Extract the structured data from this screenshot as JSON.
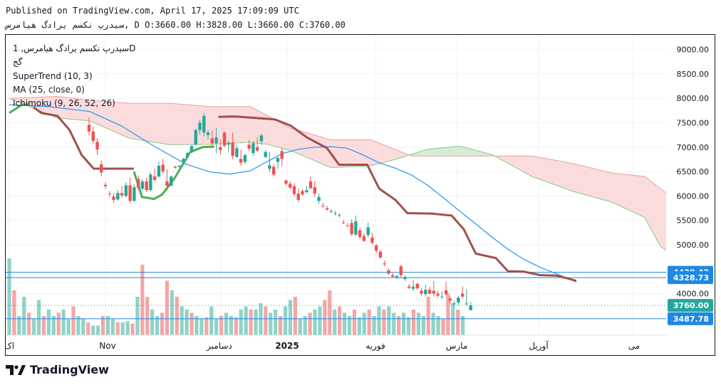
{
  "header": {
    "published": "Published on TradingView.com, April 17, 2025 17:09:09 UTC",
    "symbol_ohlc": "سیدرپ نکسم یرادگ هیامرس, D O:3660.00 H:3828.00 L:3660.00 C:3760.00"
  },
  "legend": {
    "symbol_line": "سیدرپ نکسم یرادگ هیامرس, 1D",
    "symbol_sub": "گج",
    "supertrend": "SuperTrend (10, 3)",
    "ma": "MA (25, close, 0)",
    "ichimoku": "Ichimoku (9, 26, 52, 26)"
  },
  "footer": {
    "brand": "TradingView"
  },
  "colors": {
    "up": "#26a69a",
    "down": "#ef5350",
    "vol_up": "#8fd3c9",
    "vol_down": "#f5a6a6",
    "ma": "#2196f3",
    "st_up": "#4caf50",
    "st_down": "#a1504c",
    "cloud_bull": "#d7ecd7",
    "cloud_bear": "#fbdcdc",
    "span_bull": "#8bc78d",
    "span_bear": "#e9a3a3",
    "hline": "#1e88e5"
  },
  "chart_data": {
    "type": "candlestick",
    "x_labels": [
      "اک",
      "Nov",
      "دسامبر",
      "2025",
      "فوریه",
      "مارس",
      "آوریل",
      "می"
    ],
    "y_ticks": [
      "9000.00",
      "8500.00",
      "8000.00",
      "7500.00",
      "7000.00",
      "6500.00",
      "6000.00",
      "5500.00",
      "5000.00",
      "4000.00"
    ],
    "ylim": [
      3150,
      9300
    ],
    "price_markers": [
      {
        "label": "4438.42",
        "value": 4438.42
      },
      {
        "label": "4328.73",
        "value": 4328.73
      },
      {
        "label": "3760.00",
        "value": 3760.0
      },
      {
        "label": "3487.78",
        "value": 3487.78
      }
    ],
    "last_close": 3760,
    "candles": [
      [
        7460,
        7610,
        7240,
        7320
      ],
      [
        7320,
        7420,
        7070,
        7130
      ],
      [
        7110,
        7180,
        6840,
        6950
      ],
      [
        6650,
        6720,
        6400,
        6480
      ],
      [
        6230,
        6280,
        6150,
        6200
      ],
      [
        6050,
        6100,
        5980,
        6040
      ],
      [
        5990,
        6060,
        5860,
        5920
      ],
      [
        5930,
        6120,
        5900,
        6060
      ],
      [
        6060,
        6200,
        5960,
        6010
      ],
      [
        6000,
        6280,
        5980,
        6220
      ],
      [
        6220,
        6380,
        5850,
        5900
      ],
      [
        5900,
        6240,
        5880,
        6180
      ],
      [
        6350,
        6420,
        6120,
        6170
      ],
      [
        6150,
        6340,
        6100,
        6300
      ],
      [
        6300,
        6380,
        6080,
        6120
      ],
      [
        6120,
        6480,
        6100,
        6440
      ],
      [
        6400,
        6560,
        6290,
        6330
      ],
      [
        6400,
        6700,
        6380,
        6620
      ],
      [
        6640,
        6760,
        6460,
        6500
      ],
      [
        6300,
        6550,
        6110,
        6210
      ],
      [
        6210,
        6420,
        6200,
        6400
      ],
      [
        6600,
        6620,
        6560,
        6580
      ],
      [
        6600,
        6640,
        6580,
        6620
      ],
      [
        6700,
        6780,
        6680,
        6760
      ],
      [
        6800,
        6900,
        6790,
        6880
      ],
      [
        6900,
        7050,
        6880,
        7020
      ],
      [
        7050,
        7380,
        7040,
        7350
      ],
      [
        7350,
        7560,
        7250,
        7500
      ],
      [
        7300,
        7700,
        7220,
        7640
      ],
      [
        7250,
        7350,
        7160,
        7300
      ],
      [
        7180,
        7340,
        7000,
        7080
      ],
      [
        7080,
        7400,
        6880,
        7200
      ],
      [
        7000,
        7160,
        6850,
        6940
      ],
      [
        7300,
        7320,
        7000,
        7030
      ],
      [
        7050,
        7130,
        6900,
        7090
      ],
      [
        7100,
        7300,
        6750,
        6820
      ],
      [
        6800,
        7050,
        6780,
        6980
      ],
      [
        6760,
        6950,
        6620,
        6680
      ],
      [
        6700,
        6850,
        6650,
        6840
      ],
      [
        7050,
        7150,
        6920,
        6970
      ],
      [
        6880,
        7130,
        6820,
        7080
      ],
      [
        7000,
        7200,
        6900,
        6930
      ],
      [
        7120,
        7280,
        7040,
        7240
      ],
      [
        6800,
        6940,
        6780,
        6900
      ],
      [
        6560,
        6900,
        6490,
        6630
      ],
      [
        6600,
        6650,
        6400,
        6440
      ],
      [
        6700,
        6800,
        6560,
        6780
      ],
      [
        6920,
        6980,
        6600,
        6760
      ],
      [
        6320,
        6340,
        6220,
        6250
      ],
      [
        6250,
        6300,
        6140,
        6170
      ],
      [
        6200,
        6260,
        5990,
        6040
      ],
      [
        6050,
        6150,
        5880,
        5920
      ],
      [
        6100,
        6140,
        6010,
        6030
      ],
      [
        6080,
        6200,
        6050,
        6120
      ],
      [
        6300,
        6400,
        6140,
        6160
      ],
      [
        6180,
        6300,
        5980,
        6050
      ],
      [
        5900,
        6050,
        5840,
        5980
      ],
      [
        5800,
        5860,
        5760,
        5790
      ],
      [
        5750,
        5800,
        5700,
        5720
      ],
      [
        5680,
        5730,
        5650,
        5690
      ],
      [
        5640,
        5690,
        5600,
        5650
      ],
      [
        5600,
        5650,
        5560,
        5610
      ],
      [
        5460,
        5510,
        5420,
        5450
      ],
      [
        5400,
        5450,
        5360,
        5390
      ],
      [
        5450,
        5520,
        5180,
        5220
      ],
      [
        5210,
        5600,
        5180,
        5480
      ],
      [
        5300,
        5360,
        5120,
        5160
      ],
      [
        5180,
        5240,
        5060,
        5080
      ],
      [
        5200,
        5460,
        5150,
        5360
      ],
      [
        5150,
        5250,
        5010,
        5040
      ],
      [
        4990,
        5020,
        4830,
        4880
      ],
      [
        4860,
        4900,
        4710,
        4740
      ],
      [
        4620,
        4680,
        4560,
        4600
      ],
      [
        4480,
        4520,
        4380,
        4410
      ],
      [
        4380,
        4420,
        4320,
        4350
      ],
      [
        4330,
        4380,
        4300,
        4360
      ],
      [
        4560,
        4590,
        4320,
        4380
      ],
      [
        4300,
        4380,
        4260,
        4340
      ],
      [
        4150,
        4200,
        4090,
        4120
      ],
      [
        4100,
        4290,
        4050,
        4140
      ],
      [
        4200,
        4230,
        4080,
        4110
      ],
      [
        4060,
        4110,
        3960,
        4000
      ],
      [
        3990,
        4180,
        3940,
        4080
      ],
      [
        4080,
        4140,
        3990,
        4000
      ],
      [
        4060,
        4260,
        3940,
        4000
      ],
      [
        4000,
        4060,
        3930,
        3960
      ],
      [
        3940,
        4050,
        3900,
        3940
      ],
      [
        4070,
        4250,
        3960,
        3990
      ],
      [
        3900,
        3940,
        3800,
        3860
      ],
      [
        3800,
        3860,
        3760,
        3800
      ],
      [
        3820,
        3960,
        3760,
        3920
      ],
      [
        4000,
        4150,
        3900,
        3940
      ],
      [
        3800,
        4090,
        3760,
        3800
      ],
      [
        3660,
        3828,
        3660,
        3760
      ]
    ],
    "volume": [
      [
        1,
        0
      ],
      [
        1,
        0
      ],
      [
        0,
        0
      ],
      [
        1,
        0
      ],
      [
        0,
        0
      ],
      [
        0,
        0
      ],
      [
        1,
        0
      ],
      [
        1,
        0
      ],
      [
        1,
        0
      ],
      [
        1,
        0
      ],
      [
        1,
        0
      ],
      [
        1,
        0
      ],
      [
        1,
        0
      ],
      [
        1,
        0
      ],
      [
        1,
        0
      ],
      [
        0,
        0
      ],
      [
        0,
        0
      ],
      [
        0,
        0
      ],
      [
        0,
        0
      ],
      [
        1,
        0
      ],
      [
        1,
        0
      ],
      [
        0,
        0
      ],
      [
        0,
        0
      ],
      [
        0,
        0
      ],
      [
        0,
        0
      ],
      [
        0,
        0
      ],
      [
        1,
        0
      ],
      [
        1,
        1
      ],
      [
        1,
        1
      ],
      [
        1,
        0
      ],
      [
        1,
        0
      ],
      [
        1,
        0
      ],
      [
        1,
        1
      ],
      [
        1,
        0
      ],
      [
        1,
        0
      ],
      [
        1,
        0
      ],
      [
        1,
        0
      ],
      [
        1,
        0
      ],
      [
        1,
        0
      ],
      [
        1,
        0
      ],
      [
        1,
        0
      ],
      [
        1,
        0
      ],
      [
        1,
        0
      ],
      [
        1,
        0
      ],
      [
        1,
        0
      ],
      [
        1,
        0
      ],
      [
        1,
        0
      ],
      [
        1,
        0
      ],
      [
        1,
        0
      ],
      [
        1,
        0
      ],
      [
        1,
        0
      ],
      [
        1,
        0
      ],
      [
        1,
        0
      ],
      [
        1,
        0
      ],
      [
        1,
        0
      ],
      [
        1,
        0
      ],
      [
        1,
        0
      ],
      [
        1,
        0
      ],
      [
        1,
        0
      ],
      [
        1,
        0
      ],
      [
        1,
        0
      ],
      [
        1,
        0
      ],
      [
        1,
        0
      ],
      [
        1,
        0
      ],
      [
        1,
        0
      ],
      [
        1,
        1
      ],
      [
        1,
        0
      ],
      [
        1,
        0
      ],
      [
        1,
        0
      ],
      [
        1,
        0
      ],
      [
        1,
        0
      ],
      [
        1,
        0
      ],
      [
        1,
        0
      ],
      [
        1,
        0
      ],
      [
        1,
        0
      ],
      [
        1,
        0
      ],
      [
        1,
        0
      ],
      [
        1,
        0
      ],
      [
        1,
        0
      ],
      [
        1,
        0
      ],
      [
        1,
        0
      ],
      [
        1,
        0
      ],
      [
        1,
        0
      ],
      [
        1,
        0
      ],
      [
        1,
        0
      ],
      [
        1,
        0
      ],
      [
        1,
        0
      ],
      [
        1,
        0
      ],
      [
        1,
        0
      ],
      [
        1,
        1
      ],
      [
        1,
        0
      ],
      [
        1,
        0
      ],
      [
        1,
        0
      ]
    ],
    "supertrend": [
      [
        0,
        7700,
        "up"
      ],
      [
        3,
        7860,
        "up"
      ],
      [
        5,
        7880,
        "up"
      ],
      [
        6,
        7820,
        "down"
      ],
      [
        8,
        7700,
        "down"
      ],
      [
        12,
        7640,
        "down"
      ],
      [
        15,
        7350,
        "down"
      ],
      [
        18,
        6840,
        "down"
      ],
      [
        21,
        6560,
        "down"
      ],
      [
        29,
        6560,
        "down"
      ],
      [
        31,
        6560,
        "down"
      ],
      [
        31,
        6500,
        "up"
      ],
      [
        33,
        5980,
        "up"
      ],
      [
        36,
        5940,
        "up"
      ],
      [
        38,
        6030,
        "up"
      ],
      [
        41,
        6350,
        "up"
      ],
      [
        45,
        6900,
        "up"
      ],
      [
        48,
        7000,
        "up"
      ],
      [
        51,
        7010,
        "up"
      ],
      [
        52,
        7620,
        "down"
      ],
      [
        56,
        7630,
        "down"
      ],
      [
        66,
        7570,
        "down"
      ],
      [
        70,
        7440,
        "down"
      ],
      [
        74,
        7200,
        "down"
      ],
      [
        79,
        6980,
        "down"
      ],
      [
        82,
        6640,
        "down"
      ],
      [
        86,
        6640,
        "down"
      ],
      [
        89,
        6640,
        "down"
      ],
      [
        92,
        6150,
        "down"
      ],
      [
        96,
        5920,
        "down"
      ],
      [
        99,
        5650,
        "down"
      ],
      [
        105,
        5640,
        "down"
      ],
      [
        110,
        5600,
        "down"
      ],
      [
        113,
        5320,
        "down"
      ],
      [
        116,
        4820,
        "down"
      ],
      [
        121,
        4730,
        "down"
      ],
      [
        124,
        4460,
        "down"
      ],
      [
        128,
        4450,
        "down"
      ],
      [
        132,
        4380,
        "down"
      ],
      [
        136,
        4370,
        "down"
      ],
      [
        139,
        4310,
        "down"
      ],
      [
        141,
        4260,
        "down"
      ]
    ],
    "ma": [
      [
        0,
        7870
      ],
      [
        10,
        7830
      ],
      [
        20,
        7730
      ],
      [
        28,
        7430
      ],
      [
        36,
        7020
      ],
      [
        44,
        6650
      ],
      [
        50,
        6490
      ],
      [
        55,
        6450
      ],
      [
        60,
        6520
      ],
      [
        64,
        6700
      ],
      [
        68,
        6870
      ],
      [
        72,
        6960
      ],
      [
        76,
        7000
      ],
      [
        80,
        7010
      ],
      [
        84,
        6980
      ],
      [
        88,
        6840
      ],
      [
        92,
        6680
      ],
      [
        96,
        6570
      ],
      [
        100,
        6430
      ],
      [
        104,
        6220
      ],
      [
        108,
        5960
      ],
      [
        112,
        5690
      ],
      [
        116,
        5430
      ],
      [
        120,
        5160
      ],
      [
        124,
        4910
      ],
      [
        128,
        4700
      ],
      [
        132,
        4540
      ],
      [
        136,
        4410
      ],
      [
        141,
        4240
      ]
    ],
    "span_a": [
      [
        0,
        8000
      ],
      [
        12,
        7600
      ],
      [
        20,
        7540
      ],
      [
        30,
        7180
      ],
      [
        40,
        7050
      ],
      [
        50,
        7060
      ],
      [
        60,
        7100
      ],
      [
        64,
        7060
      ],
      [
        70,
        6930
      ],
      [
        80,
        6580
      ],
      [
        90,
        6620
      ],
      [
        96,
        6750
      ],
      [
        104,
        6960
      ],
      [
        112,
        7020
      ],
      [
        120,
        6850
      ],
      [
        130,
        6400
      ],
      [
        140,
        6100
      ],
      [
        150,
        5870
      ],
      [
        158,
        5560
      ],
      [
        162,
        4960
      ],
      [
        170,
        4540
      ]
    ],
    "span_b": [
      [
        0,
        8000
      ],
      [
        12,
        8040
      ],
      [
        20,
        7960
      ],
      [
        30,
        7900
      ],
      [
        40,
        7900
      ],
      [
        50,
        7830
      ],
      [
        60,
        7830
      ],
      [
        70,
        7390
      ],
      [
        80,
        7150
      ],
      [
        90,
        7150
      ],
      [
        100,
        6820
      ],
      [
        110,
        6820
      ],
      [
        120,
        6820
      ],
      [
        130,
        6820
      ],
      [
        140,
        6670
      ],
      [
        150,
        6470
      ],
      [
        158,
        6400
      ],
      [
        170,
        5640
      ]
    ]
  }
}
